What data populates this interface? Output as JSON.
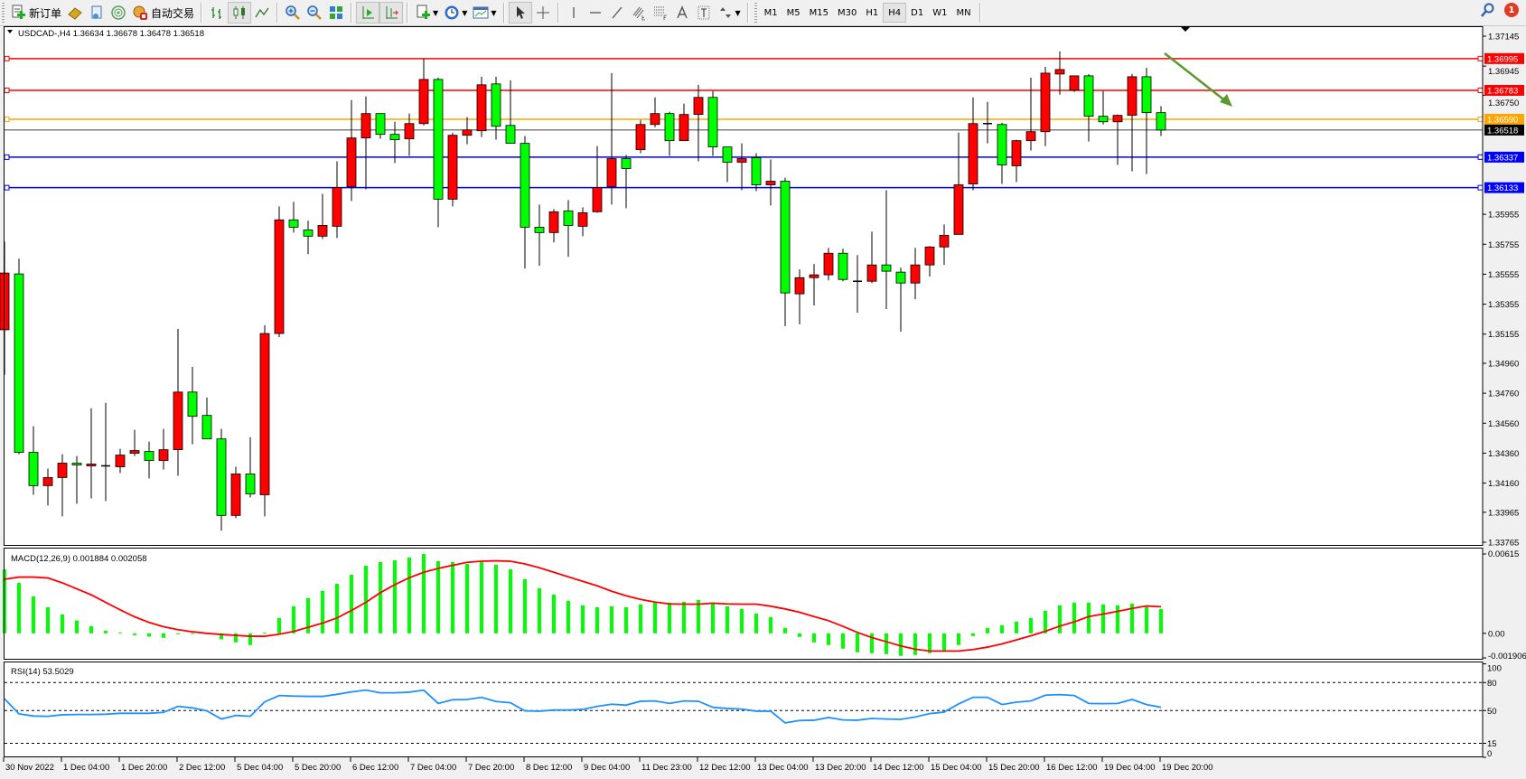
{
  "toolbar": {
    "new_order_label": "新订单",
    "auto_trading_label": "自动交易",
    "timeframes": [
      "M1",
      "M5",
      "M15",
      "M30",
      "H1",
      "H4",
      "D1",
      "W1",
      "MN"
    ],
    "active_timeframe": "H4",
    "alerts_count": "1"
  },
  "chart": {
    "header": "USDCAD-,H4  1.36634 1.36678 1.36478 1.36518",
    "symbol": "USDCAD-",
    "timeframe": "H4",
    "ohlc_current": {
      "open": 1.36634,
      "high": 1.36678,
      "low": 1.36478,
      "close": 1.36518
    },
    "bid_label": "1.36518",
    "colors": {
      "bull": "#ff0000",
      "bear": "#00ff00",
      "bid": "#000000",
      "arrow": "#5b9a2e"
    },
    "price_ticks": [
      "1.37145",
      "1.36945",
      "1.36750",
      "1.35955",
      "1.35755",
      "1.35555",
      "1.35355",
      "1.35155",
      "1.34960",
      "1.34760",
      "1.34560",
      "1.34360",
      "1.34160",
      "1.33965",
      "1.33765"
    ],
    "hlines": [
      {
        "price": "1.36995",
        "color": "#ff0000"
      },
      {
        "price": "1.36783",
        "color": "#ff0000"
      },
      {
        "price": "1.36590",
        "color": "#ffa500"
      },
      {
        "price": "1.36337",
        "color": "#0000ff"
      },
      {
        "price": "1.36133",
        "color": "#0000ff"
      }
    ],
    "time_labels": [
      "30 Nov 2022",
      "1 Dec 04:00",
      "1 Dec 20:00",
      "2 Dec 12:00",
      "5 Dec 04:00",
      "5 Dec 20:00",
      "6 Dec 12:00",
      "7 Dec 04:00",
      "7 Dec 20:00",
      "8 Dec 12:00",
      "9 Dec 04:00",
      "11 Dec 23:00",
      "12 Dec 12:00",
      "13 Dec 04:00",
      "13 Dec 20:00",
      "14 Dec 12:00",
      "15 Dec 04:00",
      "15 Dec 20:00",
      "16 Dec 12:00",
      "19 Dec 04:00",
      "19 Dec 20:00"
    ]
  },
  "macd": {
    "label": "MACD(12,26,9) 0.001884 0.002058",
    "axis_labels": [
      "0.00615",
      "0.00",
      "-0.001906"
    ],
    "colors": {
      "histogram": "#00ff00",
      "signal": "#ff0000"
    }
  },
  "rsi": {
    "label": "RSI(14) 53.5029",
    "levels": [
      "100",
      "80",
      "50",
      "15",
      "0"
    ],
    "color": "#1e90ff"
  },
  "chart_data": {
    "type": "candlestick",
    "candles_ohlc": [
      [
        1.35184,
        1.35773,
        1.34883,
        1.35563
      ],
      [
        1.35557,
        1.35659,
        1.34353,
        1.34365
      ],
      [
        1.34365,
        1.3454,
        1.34082,
        1.34143
      ],
      [
        1.34143,
        1.34257,
        1.3401,
        1.34197
      ],
      [
        1.34197,
        1.34353,
        1.33938,
        1.34293
      ],
      [
        1.34293,
        1.34341,
        1.34022,
        1.34281
      ],
      [
        1.34275,
        1.3466,
        1.34058,
        1.34287
      ],
      [
        1.34275,
        1.34696,
        1.3404,
        1.34275
      ],
      [
        1.34269,
        1.34389,
        1.34227,
        1.34347
      ],
      [
        1.34359,
        1.34516,
        1.34341,
        1.34377
      ],
      [
        1.34371,
        1.34437,
        1.34191,
        1.34311
      ],
      [
        1.34311,
        1.34522,
        1.34251,
        1.34383
      ],
      [
        1.34383,
        1.3519,
        1.34209,
        1.34768
      ],
      [
        1.34768,
        1.34937,
        1.34419,
        1.34606
      ],
      [
        1.34612,
        1.34732,
        1.34455,
        1.34455
      ],
      [
        1.34455,
        1.34522,
        1.33842,
        1.33944
      ],
      [
        1.33944,
        1.34269,
        1.33926,
        1.34221
      ],
      [
        1.34221,
        1.34467,
        1.34064,
        1.34088
      ],
      [
        1.34082,
        1.35214,
        1.33938,
        1.35159
      ],
      [
        1.35159,
        1.36008,
        1.35135,
        1.35918
      ],
      [
        1.35918,
        1.36038,
        1.35833,
        1.35869
      ],
      [
        1.35851,
        1.35912,
        1.35689,
        1.35809
      ],
      [
        1.35809,
        1.36092,
        1.35791,
        1.35881
      ],
      [
        1.35875,
        1.36309,
        1.35797,
        1.36134
      ],
      [
        1.3614,
        1.36718,
        1.36044,
        1.36465
      ],
      [
        1.36465,
        1.36742,
        1.36122,
        1.36628
      ],
      [
        1.36628,
        1.36628,
        1.36459,
        1.36489
      ],
      [
        1.36489,
        1.36573,
        1.36297,
        1.36453
      ],
      [
        1.36459,
        1.36628,
        1.36345,
        1.36561
      ],
      [
        1.36561,
        1.36995,
        1.36549,
        1.36856
      ],
      [
        1.36856,
        1.36868,
        1.35869,
        1.36056
      ],
      [
        1.36056,
        1.36501,
        1.36008,
        1.36483
      ],
      [
        1.36483,
        1.36604,
        1.36423,
        1.36519
      ],
      [
        1.36513,
        1.36874,
        1.36471,
        1.3682
      ],
      [
        1.36826,
        1.36874,
        1.36453,
        1.36543
      ],
      [
        1.36549,
        1.3685,
        1.36429,
        1.36429
      ],
      [
        1.36429,
        1.36477,
        1.35593,
        1.35869
      ],
      [
        1.35869,
        1.3602,
        1.35611,
        1.35833
      ],
      [
        1.35833,
        1.3599,
        1.35767,
        1.35972
      ],
      [
        1.35978,
        1.3605,
        1.35671,
        1.35881
      ],
      [
        1.35875,
        1.36002,
        1.35809,
        1.35966
      ],
      [
        1.35972,
        1.36411,
        1.35966,
        1.36134
      ],
      [
        1.3614,
        1.36898,
        1.3602,
        1.36327
      ],
      [
        1.36327,
        1.36351,
        1.35996,
        1.36261
      ],
      [
        1.36387,
        1.36585,
        1.36363,
        1.36555
      ],
      [
        1.36555,
        1.36736,
        1.36537,
        1.36628
      ],
      [
        1.36628,
        1.3664,
        1.36345,
        1.36447
      ],
      [
        1.36447,
        1.36694,
        1.36447,
        1.36622
      ],
      [
        1.36622,
        1.3682,
        1.36309,
        1.36736
      ],
      [
        1.36736,
        1.36778,
        1.36345,
        1.36405
      ],
      [
        1.36405,
        1.36405,
        1.3617,
        1.36303
      ],
      [
        1.36303,
        1.36429,
        1.36116,
        1.36327
      ],
      [
        1.36333,
        1.36363,
        1.3611,
        1.36152
      ],
      [
        1.36152,
        1.36321,
        1.36014,
        1.36176
      ],
      [
        1.36176,
        1.362,
        1.35208,
        1.3543
      ],
      [
        1.35424,
        1.35587,
        1.3522,
        1.35532
      ],
      [
        1.35532,
        1.35623,
        1.35346,
        1.35551
      ],
      [
        1.35551,
        1.35731,
        1.35514,
        1.35695
      ],
      [
        1.35695,
        1.35725,
        1.35508,
        1.3552
      ],
      [
        1.35508,
        1.35683,
        1.35298,
        1.35508
      ],
      [
        1.35508,
        1.35839,
        1.35496,
        1.35617
      ],
      [
        1.35617,
        1.36116,
        1.35322,
        1.35575
      ],
      [
        1.35569,
        1.35599,
        1.35171,
        1.35496
      ],
      [
        1.35496,
        1.35731,
        1.35388,
        1.35617
      ],
      [
        1.35617,
        1.35743,
        1.35539,
        1.35737
      ],
      [
        1.35737,
        1.35887,
        1.35617,
        1.35815
      ],
      [
        1.35821,
        1.36501,
        1.35821,
        1.36152
      ],
      [
        1.36158,
        1.36736,
        1.36116,
        1.36561
      ],
      [
        1.36561,
        1.36706,
        1.36429,
        1.36561
      ],
      [
        1.36555,
        1.36567,
        1.36158,
        1.36285
      ],
      [
        1.36279,
        1.36453,
        1.3617,
        1.36447
      ],
      [
        1.36447,
        1.36868,
        1.36381,
        1.36507
      ],
      [
        1.36507,
        1.3694,
        1.36411,
        1.36898
      ],
      [
        1.36892,
        1.37043,
        1.36754,
        1.36922
      ],
      [
        1.36784,
        1.3688,
        1.36772,
        1.3688
      ],
      [
        1.3688,
        1.36892,
        1.36441,
        1.3661
      ],
      [
        1.3661,
        1.36778,
        1.36555,
        1.36573
      ],
      [
        1.36573,
        1.36622,
        1.36285,
        1.36616
      ],
      [
        1.36616,
        1.36892,
        1.36242,
        1.36874
      ],
      [
        1.36874,
        1.36934,
        1.36224,
        1.36634
      ],
      [
        1.36634,
        1.36678,
        1.36478,
        1.36518
      ]
    ],
    "price_range": [
      1.33765,
      1.37145
    ],
    "macd_histogram": [
      0.00496,
      0.00391,
      0.00287,
      0.00203,
      0.00147,
      0.001,
      0.00056,
      0.00021,
      7e-05,
      -0.00014,
      -0.00026,
      -0.00035,
      -2e-05,
      2e-05,
      0.0,
      -0.00047,
      -0.0007,
      -0.00091,
      5e-05,
      0.00119,
      0.0021,
      0.00273,
      0.00329,
      0.00384,
      0.00454,
      0.00524,
      0.00552,
      0.00566,
      0.00587,
      0.00615,
      0.00559,
      0.00552,
      0.00538,
      0.00552,
      0.00531,
      0.00496,
      0.00419,
      0.0035,
      0.00301,
      0.00252,
      0.00217,
      0.00203,
      0.0021,
      0.00203,
      0.00224,
      0.00238,
      0.00238,
      0.00245,
      0.00259,
      0.00238,
      0.0021,
      0.00189,
      0.00154,
      0.00126,
      0.00042,
      -0.00028,
      -0.0007,
      -0.00091,
      -0.00119,
      -0.00147,
      -0.00154,
      -0.00161,
      -0.00175,
      -0.00168,
      -0.00154,
      -0.00133,
      -0.00091,
      -0.00021,
      0.00042,
      0.00063,
      0.00091,
      0.00119,
      0.00175,
      0.00217,
      0.00238,
      0.00238,
      0.00224,
      0.00217,
      0.00231,
      0.0021,
      0.001884
    ],
    "macd_signal": [
      0.00419,
      0.00436,
      0.00436,
      0.00429,
      0.00391,
      0.00345,
      0.00298,
      0.0024,
      0.00182,
      0.00128,
      0.00084,
      0.00051,
      0.00028,
      0.00012,
      0.0,
      -9e-05,
      -0.00016,
      -0.00023,
      -0.00023,
      -7e-05,
      0.00014,
      0.00047,
      0.00079,
      0.00119,
      0.00177,
      0.0024,
      0.00315,
      0.00377,
      0.00431,
      0.00473,
      0.00503,
      0.00527,
      0.0055,
      0.00559,
      0.00562,
      0.00559,
      0.00538,
      0.00508,
      0.00473,
      0.00438,
      0.00403,
      0.00368,
      0.00326,
      0.00291,
      0.00263,
      0.00242,
      0.00228,
      0.00226,
      0.00226,
      0.00233,
      0.00228,
      0.00226,
      0.00226,
      0.0021,
      0.00189,
      0.00163,
      0.0013,
      0.00098,
      0.00054,
      7e-05,
      -0.00033,
      -0.00065,
      -0.00098,
      -0.00123,
      -0.00137,
      -0.00137,
      -0.00137,
      -0.00126,
      -0.00107,
      -0.00082,
      -0.00051,
      -0.00019,
      0.00016,
      0.00056,
      0.00089,
      0.0013,
      0.00149,
      0.0017,
      0.00193,
      0.00212,
      0.002058
    ],
    "macd_range": [
      -0.001906,
      0.00615
    ],
    "rsi_values": [
      62.6,
      46.5,
      44.2,
      43.9,
      45.5,
      45.8,
      45.8,
      46.1,
      47.1,
      47.1,
      47.1,
      48.1,
      54.5,
      52.9,
      49.7,
      41.0,
      44.8,
      43.9,
      59.4,
      66.1,
      65.5,
      65.2,
      65.2,
      67.4,
      70.0,
      71.9,
      69.0,
      69.0,
      69.7,
      71.9,
      57.7,
      61.6,
      61.9,
      64.2,
      59.7,
      58.4,
      49.7,
      49.4,
      50.6,
      50.6,
      51.3,
      54.5,
      56.8,
      55.8,
      60.0,
      60.3,
      57.7,
      60.3,
      60.0,
      53.5,
      52.3,
      51.6,
      49.4,
      49.4,
      36.8,
      39.4,
      39.7,
      42.6,
      40.0,
      39.7,
      41.6,
      41.0,
      40.6,
      43.2,
      46.8,
      48.4,
      57.1,
      64.2,
      64.2,
      56.5,
      59.0,
      60.3,
      66.5,
      67.1,
      66.1,
      57.7,
      57.4,
      57.7,
      61.9,
      56.5,
      53.5
    ],
    "rsi_range": [
      0,
      100
    ],
    "rsi_levels": [
      80,
      50,
      15
    ]
  }
}
